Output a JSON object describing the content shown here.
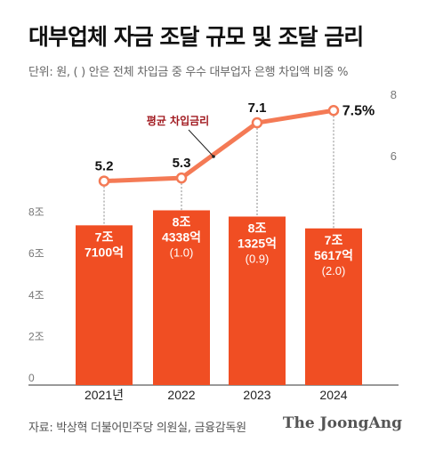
{
  "title": "대부업체 자금 조달 규모 및 조달 금리",
  "subtitle": "단위: 원, ( ) 안은 전체 차입금 중 우수 대부업자 은행 차입액 비중 %",
  "source": "자료: 박상혁 더불어민주당 의원실, 금융감독원",
  "logo": "The JoongAng",
  "colors": {
    "accent": "#f04e23",
    "line": "#f47a55",
    "text": "#1a1a1a",
    "axis": "#777777"
  },
  "chart_data": {
    "type": "bar+line",
    "categories": [
      "2021년",
      "2022",
      "2023",
      "2024"
    ],
    "bars": {
      "name": "자금 조달 규모",
      "values": [
        7.71,
        8.4338,
        8.1325,
        7.5617
      ],
      "labels": [
        [
          "7조",
          "7100억"
        ],
        [
          "8조",
          "4338억",
          "(1.0)"
        ],
        [
          "8조",
          "1325억",
          "(0.9)"
        ],
        [
          "7조",
          "5617억",
          "(2.0)"
        ]
      ],
      "share_pct": [
        null,
        1.0,
        0.9,
        2.0
      ],
      "ylim": [
        0,
        10
      ],
      "ticks": [
        0,
        2,
        4,
        6,
        8
      ],
      "tick_labels": [
        "0",
        "2조",
        "4조",
        "6조",
        "8조"
      ]
    },
    "line": {
      "name": "평균 차입금리",
      "values": [
        5.2,
        5.3,
        7.1,
        7.5
      ],
      "labels": [
        "5.2",
        "5.3",
        "7.1",
        "7.5%"
      ],
      "ylim": [
        2,
        8
      ],
      "ticks": [
        6,
        8
      ],
      "tick_labels": [
        "6",
        "8"
      ]
    }
  }
}
